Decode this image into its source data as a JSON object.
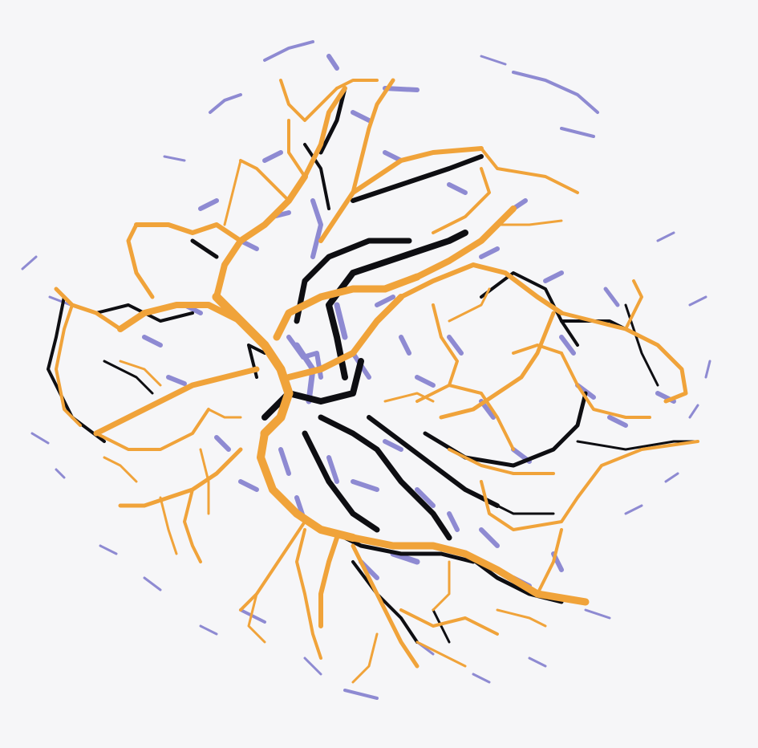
{
  "image": {
    "subject": "vessel-segmentation-overlay",
    "colors": {
      "background": "#f6f6f8",
      "layer_orange": "#f0a33a",
      "layer_black": "#0e0e12",
      "layer_purple": "#8e8ad2"
    }
  }
}
